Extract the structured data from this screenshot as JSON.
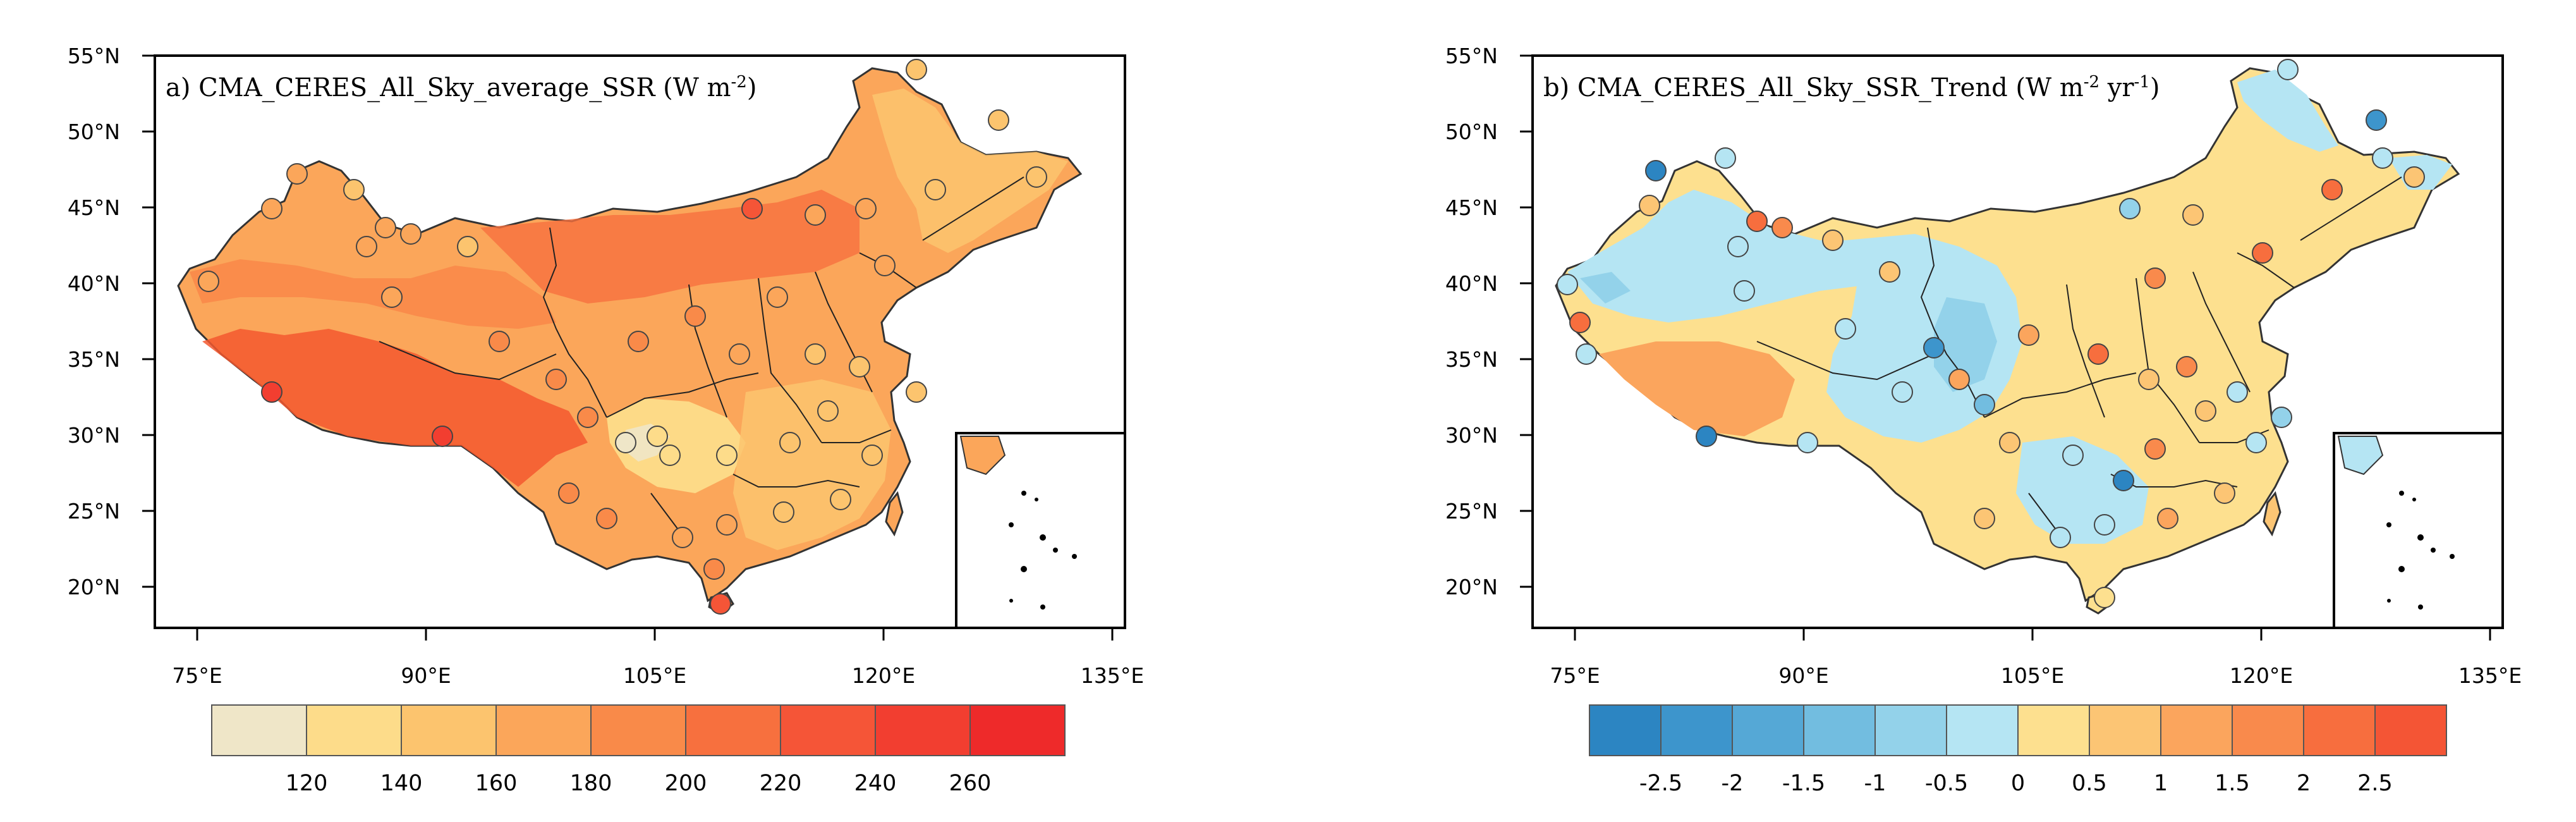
{
  "panels": [
    {
      "id": "a",
      "title_main": "a) CMA_CERES_All_Sky_average_SSR (W m",
      "title_sup1": "-2",
      "title_end": ")",
      "lat_ticks": [
        "55°N",
        "50°N",
        "45°N",
        "40°N",
        "35°N",
        "30°N",
        "25°N",
        "20°N"
      ],
      "lon_ticks": [
        "75°E",
        "90°E",
        "105°E",
        "120°E",
        "135°E"
      ],
      "colorbar": {
        "labels": [
          "120",
          "140",
          "160",
          "180",
          "200",
          "220",
          "240",
          "260"
        ],
        "colors": [
          "#efe6c8",
          "#fddc8a",
          "#fcc46e",
          "#fba65a",
          "#f98a49",
          "#f7703e",
          "#f55537",
          "#f23e30",
          "#ee2a2a"
        ]
      }
    },
    {
      "id": "b",
      "title_main": "b) CMA_CERES_All_Sky_SSR_Trend (W m",
      "title_sup1": "-2",
      "title_mid": " yr",
      "title_sup2": "-1",
      "title_end": ")",
      "lat_ticks": [
        "55°N",
        "50°N",
        "45°N",
        "40°N",
        "35°N",
        "30°N",
        "25°N",
        "20°N"
      ],
      "lon_ticks": [
        "75°E",
        "90°E",
        "105°E",
        "120°E",
        "135°E"
      ],
      "colorbar": {
        "labels": [
          "-2.5",
          "-2",
          "-1.5",
          "-1",
          "-0.5",
          "0",
          "0.5",
          "1",
          "1.5",
          "2",
          "2.5"
        ],
        "colors": [
          "#2c85c2",
          "#3d95cc",
          "#55a8d6",
          "#72bde0",
          "#93d2ea",
          "#b5e5f3",
          "#fde08f",
          "#fcc574",
          "#fba55d",
          "#f98a4c",
          "#f76e3e",
          "#f45535"
        ]
      }
    }
  ]
}
